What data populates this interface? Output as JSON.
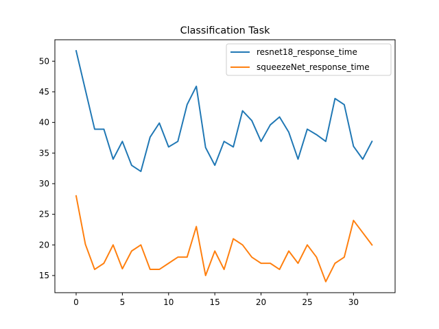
{
  "chart_data": {
    "type": "line",
    "title": "Classification Task",
    "xlabel": "",
    "ylabel": "",
    "xlim": [
      -2.3,
      34.5
    ],
    "ylim": [
      12.2,
      53.5
    ],
    "xticks": [
      0,
      5,
      10,
      15,
      20,
      25,
      30
    ],
    "yticks": [
      15,
      20,
      25,
      30,
      35,
      40,
      45,
      50
    ],
    "grid": false,
    "legend_position": "top-right",
    "x": [
      0,
      1,
      2,
      3,
      4,
      5,
      6,
      7,
      8,
      9,
      10,
      11,
      12,
      13,
      14,
      15,
      16,
      17,
      18,
      19,
      20,
      21,
      22,
      23,
      24,
      25,
      26,
      27,
      28,
      29,
      30,
      31,
      32
    ],
    "series": [
      {
        "name": "resnet18_response_time",
        "color": "#1f77b4",
        "values": [
          51.7,
          45.3,
          38.9,
          38.9,
          34.0,
          36.9,
          33.0,
          32.0,
          37.6,
          39.9,
          36.0,
          36.9,
          42.9,
          45.9,
          35.9,
          33.0,
          36.9,
          36.0,
          41.9,
          40.3,
          36.9,
          39.6,
          40.9,
          38.4,
          34.0,
          38.9,
          38.0,
          36.9,
          43.9,
          42.9,
          36.1,
          34.0,
          36.9
        ]
      },
      {
        "name": "squeezeNet_response_time",
        "color": "#ff7f0e",
        "values": [
          28.0,
          20.1,
          16.0,
          17.0,
          20.0,
          16.1,
          19.0,
          20.0,
          16.0,
          16.0,
          17.0,
          18.0,
          18.0,
          23.0,
          15.0,
          19.0,
          16.0,
          21.0,
          20.0,
          18.0,
          17.0,
          17.0,
          16.0,
          19.0,
          17.0,
          20.0,
          18.0,
          14.0,
          17.0,
          18.0,
          24.0,
          22.0,
          20.0
        ]
      }
    ]
  }
}
